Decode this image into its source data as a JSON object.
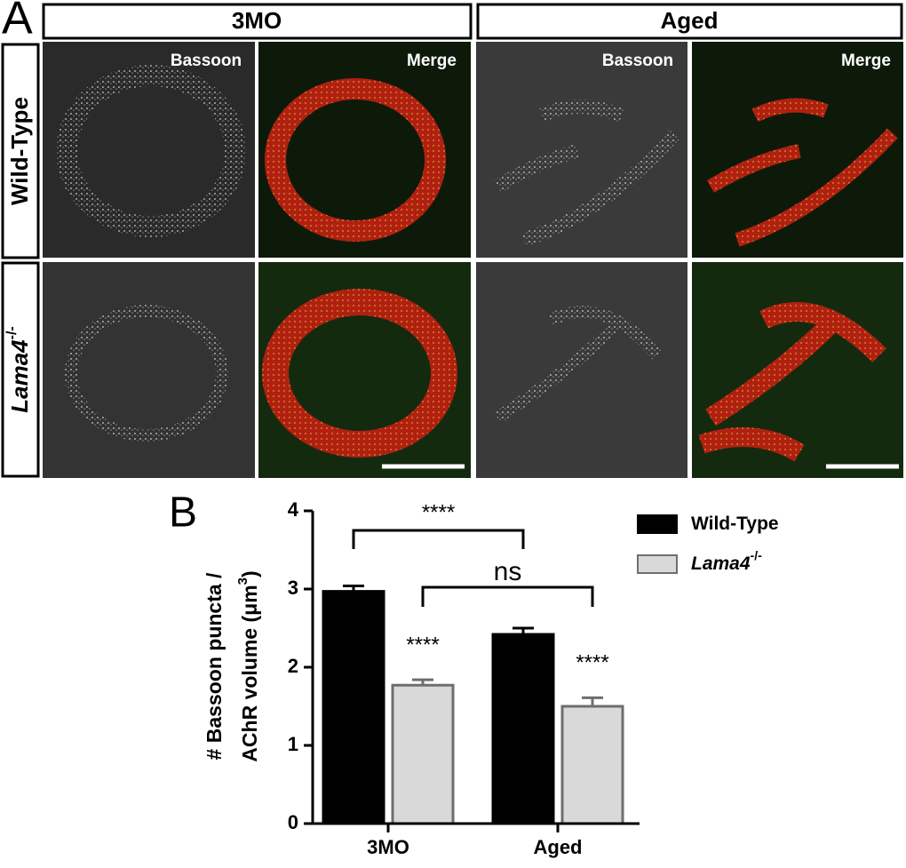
{
  "panel_a": {
    "label": "A",
    "columns": [
      "3MO",
      "Aged"
    ],
    "image_labels": [
      "Bassoon",
      "Merge",
      "Bassoon",
      "Merge"
    ],
    "rows": [
      {
        "name": "Wild-Type"
      },
      {
        "name": "Lama4",
        "sup": "-/-"
      }
    ]
  },
  "chart_data": {
    "type": "bar",
    "panel_label": "B",
    "y_label": {
      "line1": "# Bassoon puncta /",
      "line2": "AChR volume (μm",
      "sup": "3",
      "close": ")"
    },
    "categories": [
      "3MO",
      "Aged"
    ],
    "series": [
      {
        "name": "Wild-Type",
        "color": "#000000",
        "values": [
          2.97,
          2.42
        ],
        "errors": [
          0.07,
          0.08
        ],
        "annotations": [
          null,
          null
        ]
      },
      {
        "name": "Lama4",
        "name_sup": "-/-",
        "color": "#d9d9d9",
        "values": [
          1.77,
          1.5
        ],
        "errors": [
          0.07,
          0.11
        ],
        "annotations": [
          "****",
          "****"
        ]
      }
    ],
    "brackets": [
      {
        "text": "****"
      },
      {
        "text": "ns"
      }
    ],
    "ylim": [
      0,
      4
    ],
    "yticks": [
      0,
      1,
      2,
      3,
      4
    ]
  }
}
